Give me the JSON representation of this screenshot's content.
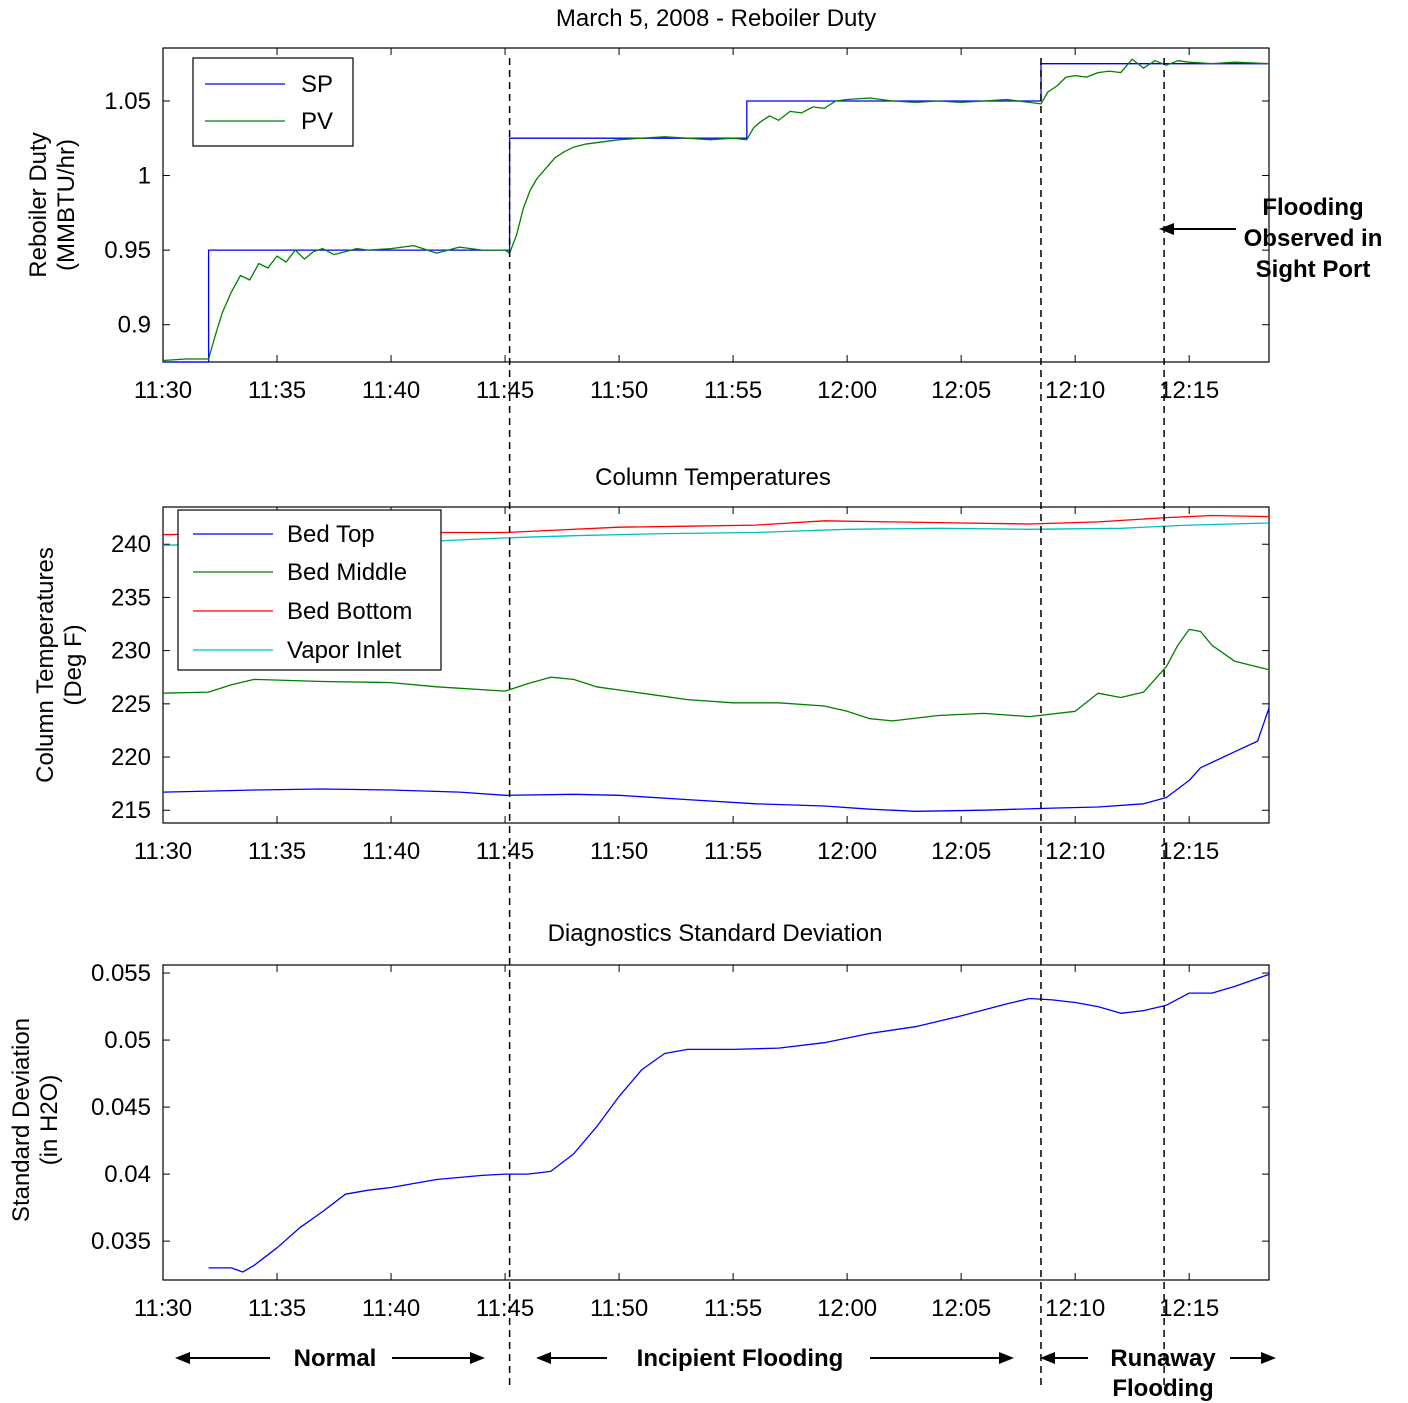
{
  "chart_data": [
    {
      "type": "line",
      "title": "March 5, 2008 - Reboiler Duty",
      "ylabel_lines": [
        "Reboiler Duty",
        "(MMBTU/hr)"
      ],
      "xlim_min": [
        690,
        738.5
      ],
      "ylim": [
        0.875,
        1.0855
      ],
      "x_ticks": [
        690,
        695,
        700,
        705,
        710,
        715,
        720,
        725,
        730,
        735
      ],
      "x_tick_labels": [
        "11:30",
        "11:35",
        "11:40",
        "11:45",
        "11:50",
        "11:55",
        "12:00",
        "12:05",
        "12:10",
        "12:15"
      ],
      "y_ticks": [
        0.9,
        0.95,
        1.0,
        1.05
      ],
      "y_tick_labels": [
        "0.9",
        "0.95",
        "1",
        "1.05"
      ],
      "legend_position": "top-left",
      "series": [
        {
          "name": "SP",
          "color": "#0000ff",
          "step": true,
          "x": [
            690,
            692,
            692,
            705.2,
            705.2,
            715.6,
            715.6,
            728.5,
            728.5,
            738.5
          ],
          "y": [
            0.875,
            0.875,
            0.95,
            0.95,
            1.025,
            1.025,
            1.05,
            1.05,
            1.075,
            1.075
          ]
        },
        {
          "name": "PV",
          "color": "#008000",
          "x": [
            690,
            691,
            692,
            692.3,
            692.6,
            693,
            693.4,
            693.8,
            694.2,
            694.6,
            695,
            695.4,
            695.8,
            696.2,
            696.6,
            697,
            697.5,
            698,
            698.5,
            699,
            700,
            701,
            702,
            703,
            704,
            705,
            705.2,
            705.5,
            705.8,
            706.1,
            706.4,
            706.8,
            707.2,
            707.6,
            708,
            708.5,
            709,
            709.5,
            710,
            711,
            712,
            713,
            714,
            715,
            715.6,
            715.9,
            716.2,
            716.6,
            717,
            717.5,
            718,
            718.5,
            719,
            719.5,
            720,
            721,
            722,
            723,
            724,
            725,
            726,
            727,
            728,
            728.5,
            728.8,
            729.2,
            729.6,
            730,
            730.5,
            731,
            731.5,
            732,
            732.5,
            733,
            733.5,
            734,
            734.5,
            735,
            736,
            737,
            738.5
          ],
          "y": [
            0.876,
            0.877,
            0.877,
            0.893,
            0.908,
            0.922,
            0.933,
            0.93,
            0.941,
            0.938,
            0.946,
            0.942,
            0.95,
            0.944,
            0.949,
            0.951,
            0.947,
            0.949,
            0.951,
            0.95,
            0.951,
            0.953,
            0.948,
            0.952,
            0.95,
            0.95,
            0.948,
            0.96,
            0.978,
            0.99,
            0.998,
            1.005,
            1.012,
            1.016,
            1.019,
            1.021,
            1.022,
            1.023,
            1.024,
            1.025,
            1.026,
            1.025,
            1.024,
            1.025,
            1.024,
            1.032,
            1.036,
            1.04,
            1.037,
            1.043,
            1.042,
            1.046,
            1.045,
            1.05,
            1.051,
            1.052,
            1.05,
            1.049,
            1.05,
            1.049,
            1.05,
            1.051,
            1.049,
            1.048,
            1.056,
            1.06,
            1.066,
            1.067,
            1.066,
            1.069,
            1.07,
            1.069,
            1.078,
            1.072,
            1.077,
            1.074,
            1.077,
            1.076,
            1.075,
            1.076,
            1.075
          ]
        }
      ],
      "annotations": {
        "flooding_note": [
          "Flooding",
          "Observed in",
          "Sight Port"
        ]
      }
    },
    {
      "type": "line",
      "title": "Column Temperatures",
      "ylabel_lines": [
        "Column Temperatures",
        "(Deg F)"
      ],
      "xlim_min": [
        690,
        738.5
      ],
      "ylim": [
        213.8,
        243.5
      ],
      "x_ticks": [
        690,
        695,
        700,
        705,
        710,
        715,
        720,
        725,
        730,
        735
      ],
      "x_tick_labels": [
        "11:30",
        "11:35",
        "11:40",
        "11:45",
        "11:50",
        "11:55",
        "12:00",
        "12:05",
        "12:10",
        "12:15"
      ],
      "y_ticks": [
        215,
        220,
        225,
        230,
        235,
        240
      ],
      "y_tick_labels": [
        "215",
        "220",
        "225",
        "230",
        "235",
        "240"
      ],
      "legend_position": "top-left",
      "series": [
        {
          "name": "Bed Top",
          "color": "#0000ff",
          "x": [
            690,
            692,
            694,
            697,
            700,
            703,
            705,
            708,
            710,
            713,
            716,
            719,
            721,
            723,
            726,
            729,
            731,
            733,
            734,
            735,
            735.5,
            736,
            737,
            738,
            738.5
          ],
          "y": [
            216.7,
            216.8,
            216.9,
            217.0,
            216.9,
            216.7,
            216.4,
            216.5,
            216.4,
            216.0,
            215.6,
            215.4,
            215.1,
            214.9,
            215.0,
            215.2,
            215.3,
            215.6,
            216.2,
            217.8,
            219.0,
            219.5,
            220.5,
            221.5,
            224.6
          ]
        },
        {
          "name": "Bed Middle",
          "color": "#008000",
          "x": [
            690,
            692,
            693,
            694,
            697,
            700,
            702,
            705,
            706,
            707,
            708,
            709,
            711,
            713,
            715,
            717,
            719,
            720,
            721,
            722,
            724,
            726,
            728,
            730,
            731,
            732,
            733,
            734,
            734.5,
            735,
            735.5,
            736,
            737,
            738.5
          ],
          "y": [
            226.0,
            226.1,
            226.8,
            227.3,
            227.1,
            227.0,
            226.6,
            226.2,
            226.9,
            227.5,
            227.3,
            226.6,
            226.0,
            225.4,
            225.1,
            225.1,
            224.8,
            224.3,
            223.6,
            223.4,
            223.9,
            224.1,
            223.8,
            224.3,
            226.0,
            225.6,
            226.1,
            228.5,
            230.5,
            232.0,
            231.8,
            230.5,
            229.0,
            228.2
          ]
        },
        {
          "name": "Bed Bottom",
          "color": "#ff0000",
          "x": [
            690,
            693,
            696,
            699,
            702,
            705,
            707,
            710,
            713,
            716,
            719,
            722,
            725,
            728,
            731,
            734,
            736,
            738.5
          ],
          "y": [
            240.9,
            241.0,
            241.0,
            241.0,
            241.1,
            241.1,
            241.3,
            241.6,
            241.7,
            241.8,
            242.2,
            242.1,
            242.0,
            241.9,
            242.1,
            242.5,
            242.7,
            242.6
          ]
        },
        {
          "name": "Vapor Inlet",
          "color": "#00bfbf",
          "x": [
            690,
            694,
            698,
            702,
            705,
            708,
            712,
            716,
            720,
            724,
            728,
            732,
            735,
            738.5
          ],
          "y": [
            239.9,
            240.1,
            240.2,
            240.3,
            240.6,
            240.8,
            241.0,
            241.1,
            241.4,
            241.5,
            241.4,
            241.5,
            241.8,
            242.0
          ]
        }
      ]
    },
    {
      "type": "line",
      "title": "Diagnostics Standard Deviation",
      "ylabel_lines": [
        "Standard Deviation",
        "(in H2O)"
      ],
      "xlim_min": [
        690,
        738.5
      ],
      "ylim": [
        0.0321,
        0.0556
      ],
      "x_ticks": [
        690,
        695,
        700,
        705,
        710,
        715,
        720,
        725,
        730,
        735
      ],
      "x_tick_labels": [
        "11:30",
        "11:35",
        "11:40",
        "11:45",
        "11:50",
        "11:55",
        "12:00",
        "12:05",
        "12:10",
        "12:15"
      ],
      "y_ticks": [
        0.035,
        0.04,
        0.045,
        0.05,
        0.055
      ],
      "y_tick_labels": [
        "0.035",
        "0.04",
        "0.045",
        "0.05",
        "0.055"
      ],
      "series": [
        {
          "name": "",
          "color": "#0000ff",
          "x": [
            692,
            693,
            693.5,
            694,
            695,
            696,
            697,
            698,
            699,
            700,
            702,
            704,
            705,
            706,
            707,
            708,
            709,
            710,
            711,
            712,
            713,
            715,
            717,
            719,
            721,
            723,
            725,
            727,
            728,
            729,
            730,
            731,
            732,
            733,
            734,
            735,
            736,
            737,
            738.5
          ],
          "y": [
            0.033,
            0.033,
            0.0327,
            0.0332,
            0.0345,
            0.036,
            0.0372,
            0.0385,
            0.0388,
            0.039,
            0.0396,
            0.0399,
            0.04,
            0.04,
            0.0402,
            0.0415,
            0.0435,
            0.0458,
            0.0478,
            0.049,
            0.0493,
            0.0493,
            0.0494,
            0.0498,
            0.0505,
            0.051,
            0.0518,
            0.0527,
            0.0531,
            0.053,
            0.0528,
            0.0525,
            0.052,
            0.0522,
            0.0526,
            0.0535,
            0.0535,
            0.054,
            0.0549
          ]
        }
      ]
    }
  ],
  "event_lines_min": [
    705.2,
    728.5,
    733.9
  ],
  "regions": {
    "normal": "Normal",
    "incipient": "Incipient Flooding",
    "runaway_lines": [
      "Runaway",
      "Flooding"
    ]
  }
}
